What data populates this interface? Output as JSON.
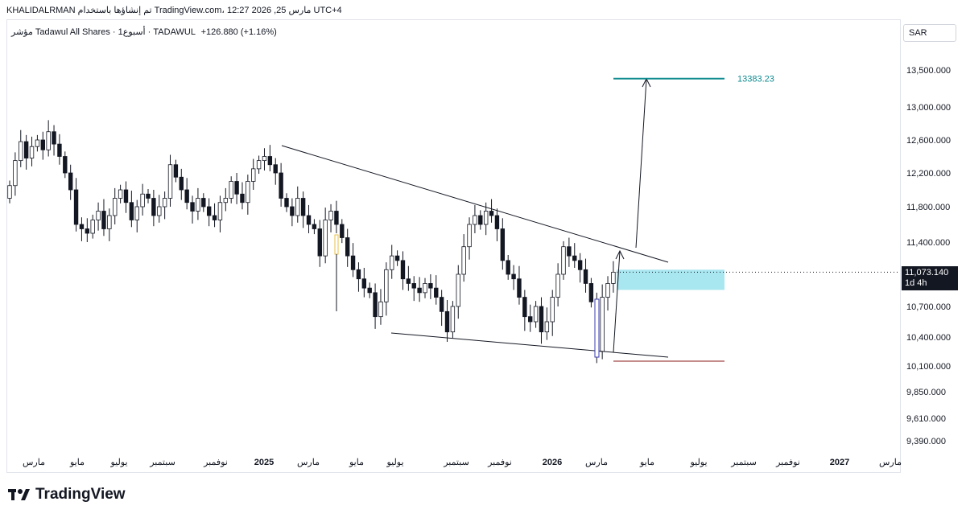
{
  "header": {
    "attribution": "KHALIDALRMAN تم إنشاؤها باستخدام TradingView.com، 12:27 2026 ,25 مارس UTC+4",
    "symbol_line": "مؤشر Tadawul All Shares · 1أسبوع · TADAWUL",
    "change": "+126.880 (+1.16%)",
    "currency": "SAR"
  },
  "price_tag": {
    "price": "11,073.140",
    "countdown": "1d 4h"
  },
  "brand": {
    "name": "TradingView"
  },
  "colors": {
    "up": "#131722",
    "down": "#131722",
    "target": "#0f8a8f",
    "zone": "#a8e6f0",
    "support": "#8b1a1a",
    "highlight": "#e8c24a"
  },
  "chart_data": {
    "type": "candlestick",
    "title": "مؤشر Tadawul All Shares · 1أسبوع · TADAWUL",
    "y_ticks": [
      "13,500.000",
      "13,000.000",
      "12,600.000",
      "12,200.000",
      "11,800.000",
      "11,400.000",
      "10,700.000",
      "10,400.000",
      "10,100.000",
      "9,850.000",
      "9,610.000",
      "9,390.000"
    ],
    "x_ticks": [
      "مارس",
      "مايو",
      "يوليو",
      "سبتمبر",
      "نوفمبر",
      "2025",
      "مارس",
      "مايو",
      "يوليو",
      "سبتمبر",
      "نوفمبر",
      "2026",
      "مارس",
      "مايو",
      "يوليو",
      "سبتمبر",
      "نوفمبر",
      "2027",
      "مارس"
    ],
    "last_price": 11073.14,
    "target": {
      "label": "13383.23",
      "value": 13383.23
    },
    "buy_zone": {
      "low": 10880,
      "high": 11100
    },
    "support_level": 10150,
    "series_close": [
      12050,
      12350,
      12580,
      12380,
      12520,
      12600,
      12480,
      12700,
      12550,
      12400,
      12200,
      12000,
      11600,
      11550,
      11500,
      11650,
      11750,
      11550,
      11700,
      11900,
      12000,
      11850,
      11650,
      11800,
      11950,
      11900,
      11700,
      11800,
      11900,
      12300,
      12150,
      12000,
      11850,
      11750,
      11900,
      11800,
      11700,
      11650,
      11850,
      11900,
      12100,
      11950,
      11850,
      12100,
      12250,
      12350,
      12400,
      12300,
      12200,
      11900,
      11800,
      11700,
      11900,
      11700,
      11600,
      11550,
      11250,
      11650,
      11750,
      11600,
      11450,
      11250,
      11100,
      11000,
      10900,
      10850,
      10600,
      10750,
      11100,
      11250,
      11200,
      11000,
      10950,
      10900,
      10850,
      10950,
      10900,
      10800,
      10650,
      10450,
      10700,
      11050,
      11350,
      11600,
      11700,
      11600,
      11750,
      11700,
      11550,
      11200,
      11050,
      11000,
      10800,
      10600,
      10550,
      10700,
      10450,
      10550,
      10800,
      11050,
      11350,
      11250,
      11200,
      11100,
      10950,
      10750,
      10250,
      10800,
      10950,
      11073
    ]
  }
}
